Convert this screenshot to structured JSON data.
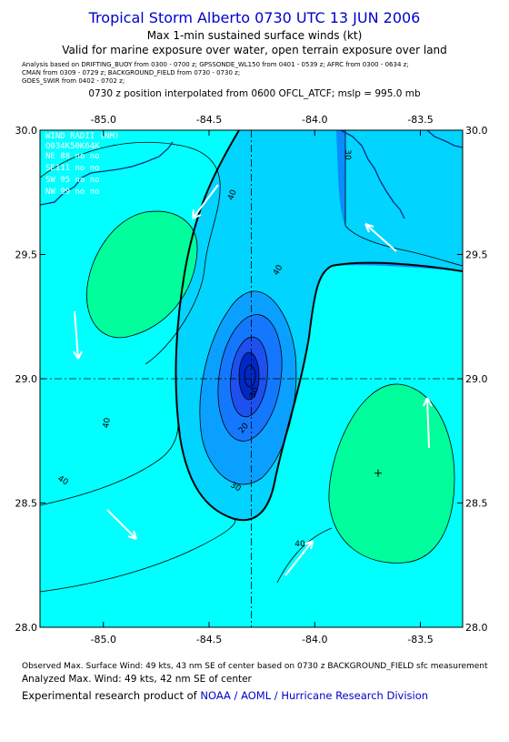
{
  "header": {
    "title": "Tropical Storm Alberto 0730 UTC 13 JUN 2006",
    "subtitle1": "Max 1-min sustained surface winds (kt)",
    "subtitle2": "Valid for marine exposure over water, open terrain exposure over land",
    "analysis_line1": "Analysis based on   DRIFTING_BUOY from 0300 - 0700 z;  GPSSONDE_WL150 from 0401 - 0539 z;   AFRC from 0300 - 0634 z;",
    "analysis_line2": "CMAN from 0309 - 0729 z;   BACKGROUND_FIELD from 0730 - 0730 z;",
    "analysis_line3": "GOES_SWIR from 0402 - 0702 z;",
    "position_line": "0730 z position interpolated from 0600 OFCL_ATCF; mslp = 995.0 mb"
  },
  "map": {
    "lon_range": [
      -85.3,
      -83.3
    ],
    "lat_range": [
      28.0,
      30.0
    ],
    "top_lon_labels": [
      "-85.0",
      "-84.5",
      "-84.0",
      "-83.5"
    ],
    "bottom_lon_labels": [
      "-85.0",
      "-84.5",
      "-84.0",
      "-83.5"
    ],
    "top_lon_values": [
      -85.0,
      -84.5,
      -84.0,
      -83.5
    ],
    "lat_labels": [
      "30.0",
      "29.5",
      "29.0",
      "28.5",
      "28.0"
    ],
    "lat_values": [
      30.0,
      29.5,
      29.0,
      28.5,
      28.0
    ],
    "center": {
      "lon": -84.3,
      "lat": 29.0
    },
    "max_wind_marker": {
      "lon": -83.7,
      "lat": 28.62
    },
    "contour_labels": [
      "40",
      "30",
      "40",
      "40",
      "40",
      "30",
      "20",
      "30",
      "40"
    ],
    "wind_radii": {
      "title": "WIND RADII (NM)",
      "header": "Q034K50K64K",
      "rows": [
        "NE 88  no  no",
        "SE111  no  no",
        "SW 95  no  no",
        "NW 99  no  no"
      ]
    },
    "colors": {
      "background": "#00ffff",
      "band_30_40": "#00d4ff",
      "band_20_30": "#0aa0ff",
      "band_10_20": "#1478ff",
      "core": "#1e50f0",
      "inner_core": "#0028c8",
      "high_wind": "#00ff9c",
      "northeast_band": "#0a8cff",
      "northeast_core": "#0050ff",
      "land_line": "#002a80",
      "arrow": "#ffffff"
    }
  },
  "footer": {
    "observed": "Observed Max. Surface Wind: 49 kts, 43 nm SE of center based on 0730 z BACKGROUND_FIELD sfc measurement",
    "analyzed": "Analyzed Max. Wind: 49 kts, 42 nm SE of center",
    "product_prefix": "Experimental research product of ",
    "product_org": "NOAA / AOML / Hurricane Research Division"
  }
}
